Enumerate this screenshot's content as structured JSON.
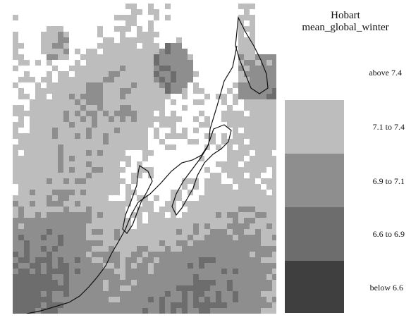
{
  "legend": {
    "title_line1": "Hobart",
    "title_line2": "mean_global_winter",
    "classes": [
      {
        "label": "above  7.4",
        "color": "#ffffff"
      },
      {
        "label": "7.1 to  7.4",
        "color": "#bdbdbd"
      },
      {
        "label": "6.9 to  7.1",
        "color": "#8e8e8e"
      },
      {
        "label": "6.6 to  6.9",
        "color": "#6d6d6d"
      },
      {
        "label": "below  6.6",
        "color": "#3f3f3f"
      }
    ]
  },
  "map": {
    "overlay": "coastline",
    "overlay_color": "#1a1a1a"
  }
}
